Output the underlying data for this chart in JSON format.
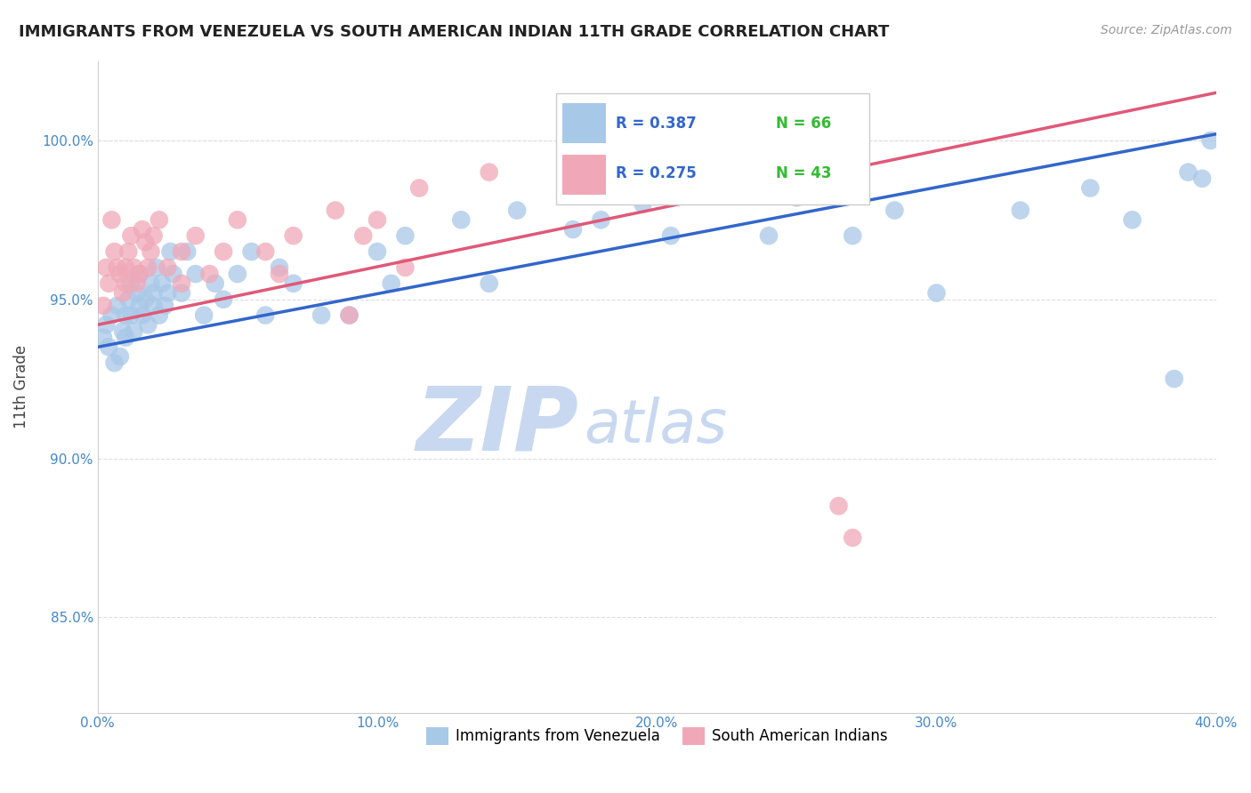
{
  "title": "IMMIGRANTS FROM VENEZUELA VS SOUTH AMERICAN INDIAN 11TH GRADE CORRELATION CHART",
  "source": "Source: ZipAtlas.com",
  "xlabel_legend1": "Immigrants from Venezuela",
  "xlabel_legend2": "South American Indians",
  "ylabel": "11th Grade",
  "xlim": [
    0.0,
    40.0
  ],
  "ylim": [
    82.0,
    102.5
  ],
  "yticks": [
    85.0,
    90.0,
    95.0,
    100.0
  ],
  "ytick_labels": [
    "85.0%",
    "90.0%",
    "95.0%",
    "100.0%"
  ],
  "xticks": [
    0.0,
    10.0,
    20.0,
    30.0,
    40.0
  ],
  "xtick_labels": [
    "0.0%",
    "10.0%",
    "20.0%",
    "30.0%",
    "40.0%"
  ],
  "legend_R1": "R = 0.387",
  "legend_N1": "N = 66",
  "legend_R2": "R = 0.275",
  "legend_N2": "N = 43",
  "blue_color": "#A8C8E8",
  "pink_color": "#F0A8B8",
  "blue_line_color": "#3366CC",
  "pink_line_color": "#E05878",
  "watermark_zip": "ZIP",
  "watermark_atlas": "atlas",
  "watermark_color": "#C8D8F0",
  "blue_line_x0": 0.0,
  "blue_line_y0": 93.5,
  "blue_line_x1": 40.0,
  "blue_line_y1": 100.2,
  "pink_line_x0": 0.0,
  "pink_line_y0": 94.2,
  "pink_line_x1": 40.0,
  "pink_line_y1": 101.5,
  "blue_scatter_x": [
    0.2,
    0.3,
    0.4,
    0.5,
    0.6,
    0.7,
    0.8,
    0.9,
    1.0,
    1.0,
    1.1,
    1.2,
    1.2,
    1.3,
    1.4,
    1.5,
    1.5,
    1.6,
    1.7,
    1.8,
    1.9,
    2.0,
    2.0,
    2.1,
    2.2,
    2.3,
    2.4,
    2.5,
    2.6,
    2.7,
    3.0,
    3.2,
    3.5,
    3.8,
    4.2,
    4.5,
    5.0,
    5.5,
    6.0,
    6.5,
    7.0,
    8.0,
    9.0,
    10.0,
    11.0,
    13.0,
    15.0,
    17.0,
    18.0,
    19.5,
    20.5,
    22.0,
    24.0,
    25.0,
    27.0,
    28.5,
    30.0,
    33.0,
    35.5,
    37.0,
    38.5,
    39.0,
    39.5,
    39.8,
    10.5,
    14.0
  ],
  "blue_scatter_y": [
    93.8,
    94.2,
    93.5,
    94.5,
    93.0,
    94.8,
    93.2,
    94.0,
    94.5,
    93.8,
    95.0,
    94.5,
    95.5,
    94.0,
    95.2,
    94.8,
    95.8,
    94.5,
    95.0,
    94.2,
    95.5,
    94.8,
    95.2,
    96.0,
    94.5,
    95.5,
    94.8,
    95.2,
    96.5,
    95.8,
    95.2,
    96.5,
    95.8,
    94.5,
    95.5,
    95.0,
    95.8,
    96.5,
    94.5,
    96.0,
    95.5,
    94.5,
    94.5,
    96.5,
    97.0,
    97.5,
    97.8,
    97.2,
    97.5,
    98.0,
    97.0,
    98.5,
    97.0,
    98.2,
    97.0,
    97.8,
    95.2,
    97.8,
    98.5,
    97.5,
    92.5,
    99.0,
    98.8,
    100.0,
    95.5,
    95.5
  ],
  "pink_scatter_x": [
    0.2,
    0.3,
    0.4,
    0.5,
    0.6,
    0.7,
    0.8,
    0.9,
    1.0,
    1.0,
    1.1,
    1.2,
    1.3,
    1.4,
    1.5,
    1.6,
    1.7,
    1.8,
    1.9,
    2.0,
    2.2,
    2.5,
    3.0,
    3.5,
    4.0,
    5.0,
    6.0,
    7.0,
    8.5,
    9.5,
    10.0,
    11.5,
    14.0,
    19.0,
    20.5,
    25.0,
    3.0,
    4.5,
    6.5,
    9.0,
    11.0,
    26.5,
    27.0
  ],
  "pink_scatter_y": [
    94.8,
    96.0,
    95.5,
    97.5,
    96.5,
    96.0,
    95.8,
    95.2,
    96.0,
    95.5,
    96.5,
    97.0,
    96.0,
    95.5,
    95.8,
    97.2,
    96.8,
    96.0,
    96.5,
    97.0,
    97.5,
    96.0,
    96.5,
    97.0,
    95.8,
    97.5,
    96.5,
    97.0,
    97.8,
    97.0,
    97.5,
    98.5,
    99.0,
    98.5,
    99.5,
    99.5,
    95.5,
    96.5,
    95.8,
    94.5,
    96.0,
    88.5,
    87.5
  ]
}
